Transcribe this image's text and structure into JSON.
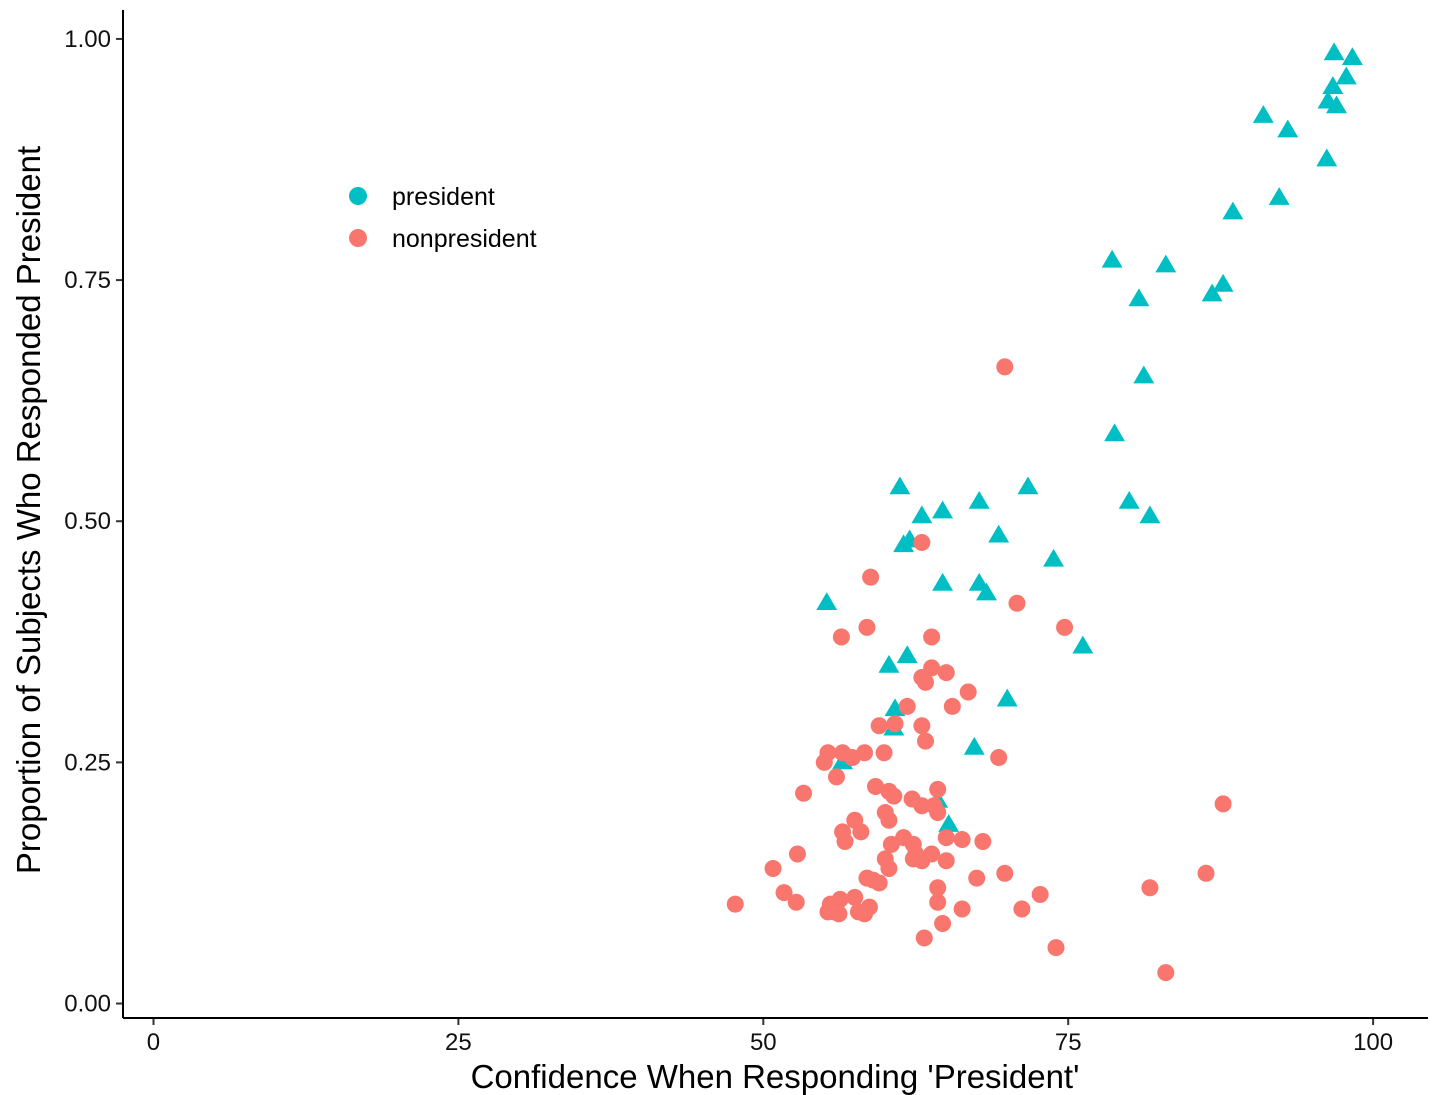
{
  "chart_data": {
    "type": "scatter",
    "xlabel": "Confidence When Responding 'President'",
    "ylabel": "Proportion of Subjects Who Responded President",
    "xlim": [
      -2.5,
      104.5
    ],
    "ylim": [
      -0.015,
      1.03
    ],
    "xticks": [
      0,
      25,
      50,
      75,
      100
    ],
    "xtick_labels": [
      "0",
      "25",
      "50",
      "75",
      "100"
    ],
    "yticks": [
      0,
      0.25,
      0.5,
      0.75,
      1.0
    ],
    "ytick_labels": [
      "0.00",
      "0.25",
      "0.50",
      "0.75",
      "1.00"
    ],
    "grid": false,
    "legend_position": "upper-left",
    "series": [
      {
        "name": "president",
        "color": "#00BFC4",
        "marker": "triangle",
        "points": [
          [
            96.8,
            0.985
          ],
          [
            98.3,
            0.98
          ],
          [
            97.8,
            0.96
          ],
          [
            96.7,
            0.95
          ],
          [
            96.3,
            0.935
          ],
          [
            97.0,
            0.93
          ],
          [
            91.0,
            0.92
          ],
          [
            93.0,
            0.905
          ],
          [
            96.2,
            0.875
          ],
          [
            92.3,
            0.835
          ],
          [
            88.5,
            0.82
          ],
          [
            78.6,
            0.77
          ],
          [
            83.0,
            0.765
          ],
          [
            87.7,
            0.745
          ],
          [
            80.8,
            0.73
          ],
          [
            86.8,
            0.735
          ],
          [
            81.2,
            0.65
          ],
          [
            78.8,
            0.59
          ],
          [
            61.2,
            0.535
          ],
          [
            71.7,
            0.535
          ],
          [
            67.7,
            0.52
          ],
          [
            80.0,
            0.52
          ],
          [
            64.7,
            0.51
          ],
          [
            63.0,
            0.505
          ],
          [
            81.7,
            0.505
          ],
          [
            69.3,
            0.485
          ],
          [
            62.0,
            0.48
          ],
          [
            61.5,
            0.475
          ],
          [
            73.8,
            0.46
          ],
          [
            64.7,
            0.435
          ],
          [
            67.7,
            0.435
          ],
          [
            68.3,
            0.425
          ],
          [
            55.2,
            0.415
          ],
          [
            76.2,
            0.37
          ],
          [
            61.8,
            0.36
          ],
          [
            60.3,
            0.35
          ],
          [
            70.0,
            0.315
          ],
          [
            60.8,
            0.305
          ],
          [
            60.7,
            0.285
          ],
          [
            67.3,
            0.265
          ],
          [
            56.5,
            0.25
          ],
          [
            64.3,
            0.21
          ],
          [
            65.2,
            0.185
          ]
        ]
      },
      {
        "name": "nonpresident",
        "color": "#F8766D",
        "marker": "circle",
        "points": [
          [
            69.8,
            0.66
          ],
          [
            63.0,
            0.478
          ],
          [
            58.8,
            0.442
          ],
          [
            70.8,
            0.415
          ],
          [
            74.7,
            0.39
          ],
          [
            58.5,
            0.39
          ],
          [
            56.4,
            0.38
          ],
          [
            63.8,
            0.38
          ],
          [
            63.8,
            0.348
          ],
          [
            65.0,
            0.343
          ],
          [
            63.0,
            0.338
          ],
          [
            63.3,
            0.333
          ],
          [
            66.8,
            0.323
          ],
          [
            61.8,
            0.308
          ],
          [
            65.5,
            0.308
          ],
          [
            59.5,
            0.288
          ],
          [
            60.8,
            0.29
          ],
          [
            63.0,
            0.288
          ],
          [
            63.3,
            0.272
          ],
          [
            55.3,
            0.26
          ],
          [
            56.5,
            0.26
          ],
          [
            57.3,
            0.255
          ],
          [
            58.3,
            0.26
          ],
          [
            59.9,
            0.26
          ],
          [
            69.3,
            0.255
          ],
          [
            55.0,
            0.25
          ],
          [
            56.0,
            0.235
          ],
          [
            59.2,
            0.225
          ],
          [
            60.3,
            0.22
          ],
          [
            64.3,
            0.222
          ],
          [
            53.3,
            0.218
          ],
          [
            60.7,
            0.215
          ],
          [
            62.2,
            0.212
          ],
          [
            87.7,
            0.207
          ],
          [
            63.0,
            0.205
          ],
          [
            64.0,
            0.205
          ],
          [
            64.3,
            0.198
          ],
          [
            60.0,
            0.198
          ],
          [
            57.5,
            0.19
          ],
          [
            60.3,
            0.19
          ],
          [
            56.5,
            0.178
          ],
          [
            58.0,
            0.178
          ],
          [
            61.5,
            0.172
          ],
          [
            65.0,
            0.172
          ],
          [
            66.3,
            0.17
          ],
          [
            56.7,
            0.168
          ],
          [
            60.5,
            0.165
          ],
          [
            62.3,
            0.165
          ],
          [
            68.0,
            0.168
          ],
          [
            52.8,
            0.155
          ],
          [
            62.5,
            0.155
          ],
          [
            63.8,
            0.155
          ],
          [
            60.0,
            0.15
          ],
          [
            62.3,
            0.15
          ],
          [
            63.0,
            0.148
          ],
          [
            65.0,
            0.148
          ],
          [
            50.8,
            0.14
          ],
          [
            60.3,
            0.14
          ],
          [
            69.8,
            0.135
          ],
          [
            86.3,
            0.135
          ],
          [
            58.5,
            0.13
          ],
          [
            59.0,
            0.128
          ],
          [
            59.5,
            0.125
          ],
          [
            67.5,
            0.13
          ],
          [
            64.3,
            0.12
          ],
          [
            81.7,
            0.12
          ],
          [
            51.7,
            0.115
          ],
          [
            72.7,
            0.113
          ],
          [
            57.5,
            0.11
          ],
          [
            56.3,
            0.108
          ],
          [
            52.7,
            0.105
          ],
          [
            55.5,
            0.103
          ],
          [
            64.3,
            0.105
          ],
          [
            47.7,
            0.103
          ],
          [
            58.7,
            0.1
          ],
          [
            66.3,
            0.098
          ],
          [
            71.2,
            0.098
          ],
          [
            55.3,
            0.095
          ],
          [
            55.8,
            0.095
          ],
          [
            56.2,
            0.093
          ],
          [
            57.8,
            0.095
          ],
          [
            58.3,
            0.093
          ],
          [
            64.7,
            0.083
          ],
          [
            63.2,
            0.068
          ],
          [
            74.0,
            0.058
          ],
          [
            83.0,
            0.032
          ]
        ]
      }
    ]
  }
}
